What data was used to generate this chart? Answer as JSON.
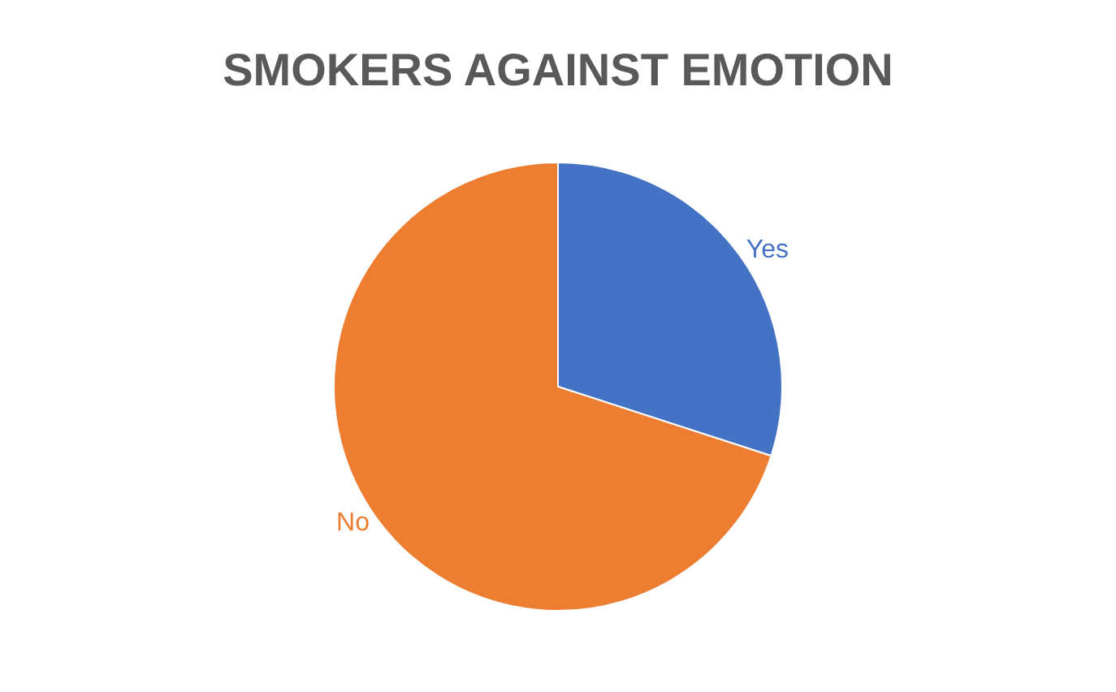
{
  "chart_data": {
    "type": "pie",
    "title": "SMOKERS AGAINST EMOTION",
    "categories": [
      "Yes",
      "No"
    ],
    "values": [
      30,
      70
    ],
    "colors": [
      "#4472c4",
      "#ed7d31"
    ],
    "legend": false
  }
}
